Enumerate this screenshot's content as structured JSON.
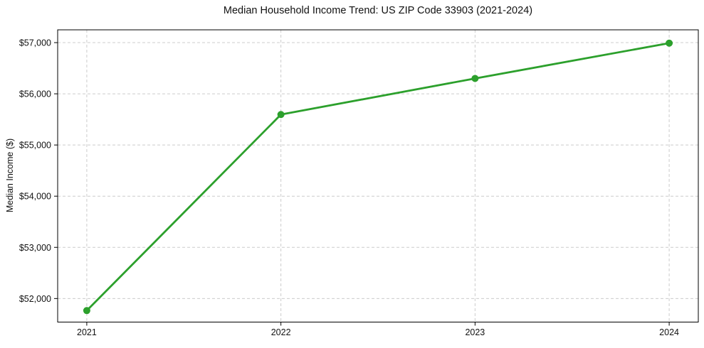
{
  "page": {
    "background": "#ffffff"
  },
  "chart_data": {
    "type": "line",
    "title": "Median Household Income Trend: US ZIP Code 33903 (2021-2024)",
    "xlabel": "",
    "ylabel": "Median Income ($)",
    "x": [
      2021,
      2022,
      2023,
      2024
    ],
    "x_tick_labels": [
      "2021",
      "2022",
      "2023",
      "2024"
    ],
    "series": [
      {
        "name": "Median Household Income",
        "values": [
          51765,
          55595,
          56300,
          56990
        ],
        "color": "#2ca02c"
      }
    ],
    "y_ticks": [
      52000,
      53000,
      54000,
      55000,
      56000,
      57000
    ],
    "y_tick_labels": [
      "$52,000",
      "$53,000",
      "$54,000",
      "$55,000",
      "$56,000",
      "$57,000"
    ],
    "ylim": [
      51540,
      57250
    ],
    "xlim": [
      2020.85,
      2024.15
    ],
    "grid": true,
    "grid_color": "#cccccc",
    "grid_dash": "4 3",
    "spine_color": "#000000",
    "marker": "circle",
    "marker_radius": 5,
    "line_width": 2.8,
    "legend": null
  }
}
